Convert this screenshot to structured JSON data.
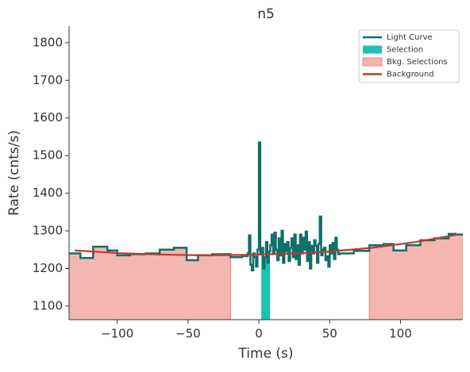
{
  "chart_data": {
    "type": "step",
    "title": "n5",
    "x_label": "Time (s)",
    "y_label": "Rate (cnts/s)",
    "xlim": [
      -134,
      144
    ],
    "ylim": [
      1064,
      1844
    ],
    "xticks": [
      {
        "value": -100,
        "label": "−100"
      },
      {
        "value": -50,
        "label": "−50"
      },
      0,
      50,
      100
    ],
    "yticks": [
      1100,
      1200,
      1300,
      1400,
      1500,
      1600,
      1700,
      1800
    ],
    "legend_position": "upper right",
    "series": [
      {
        "name": "Light Curve",
        "color": "#0e6f6b",
        "x": [
          -134,
          -126,
          -117,
          -107,
          -100,
          -91,
          -80,
          -70,
          -60,
          -51,
          -43,
          -33,
          -20,
          -12,
          -8,
          -7,
          -6,
          -5,
          -4,
          -3,
          -2,
          -1,
          0,
          1,
          2,
          3,
          4,
          5,
          6,
          7,
          8,
          9,
          10,
          11,
          12,
          13,
          14,
          15,
          16,
          17,
          18,
          19,
          20,
          21,
          22,
          23,
          24,
          25,
          26,
          27,
          28,
          29,
          30,
          31,
          32,
          33,
          34,
          35,
          36,
          37,
          38,
          39,
          40,
          41,
          42,
          43,
          44,
          45,
          46,
          47,
          48,
          49,
          50,
          51,
          52,
          53,
          54,
          55,
          56,
          57,
          58,
          67,
          78,
          88,
          95,
          104,
          114,
          124,
          134,
          139,
          144
        ],
        "values": [
          1240,
          1228,
          1258,
          1248,
          1235,
          1238,
          1240,
          1250,
          1255,
          1222,
          1235,
          1238,
          1230,
          1233,
          1240,
          1288,
          1210,
          1195,
          1240,
          1230,
          1205,
          1250,
          1535,
          1240,
          1255,
          1200,
          1230,
          1270,
          1215,
          1245,
          1262,
          1290,
          1240,
          1295,
          1250,
          1222,
          1280,
          1235,
          1300,
          1215,
          1265,
          1245,
          1270,
          1220,
          1255,
          1280,
          1230,
          1290,
          1225,
          1262,
          1210,
          1290,
          1240,
          1282,
          1250,
          1298,
          1220,
          1270,
          1200,
          1260,
          1240,
          1275,
          1260,
          1215,
          1265,
          1338,
          1235,
          1250,
          1255,
          1222,
          1232,
          1205,
          1262,
          1240,
          1268,
          1225,
          1282,
          1250,
          1238,
          1240,
          1240,
          1247,
          1262,
          1265,
          1248,
          1262,
          1275,
          1280,
          1292,
          1290,
          1290
        ]
      },
      {
        "name": "Selection",
        "color": "#1fc1b4",
        "range": [
          1.7,
          7.9
        ]
      },
      {
        "name": "Bkg. Selections",
        "color": "#f4b6b0",
        "ranges": [
          [
            -134,
            -20
          ],
          [
            78,
            144
          ]
        ]
      },
      {
        "name": "Background",
        "color": "#c0392b",
        "x": [
          -130,
          -100,
          -70,
          -40,
          -10,
          20,
          50,
          80,
          110,
          140
        ],
        "values": [
          1248,
          1241,
          1237,
          1235,
          1236,
          1239,
          1245,
          1255,
          1270,
          1290
        ]
      }
    ]
  }
}
